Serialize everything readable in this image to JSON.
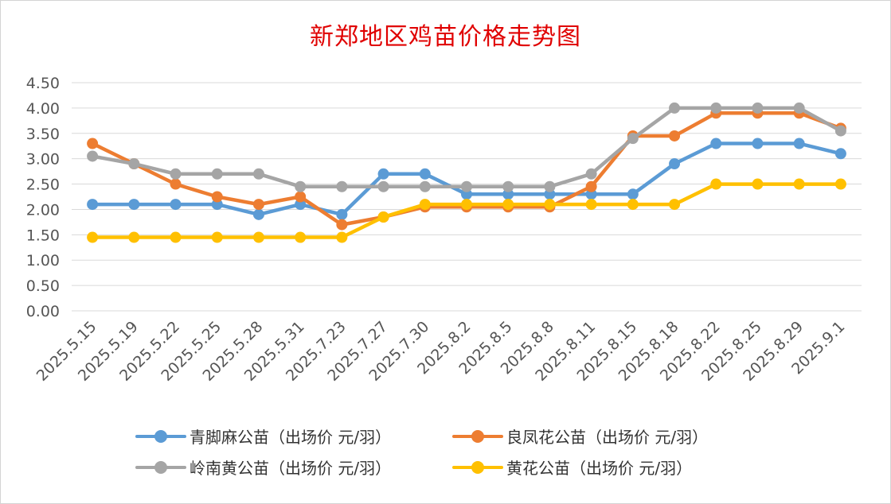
{
  "chart_data": {
    "type": "line",
    "title": "新郑地区鸡苗价格走势图",
    "categories": [
      "2025.5.15",
      "2025.5.19",
      "2025.5.22",
      "2025.5.25",
      "2025.5.28",
      "2025.5.31",
      "2025.7.23",
      "2025.7.27",
      "2025.7.30",
      "2025.8.2",
      "2025.8.5",
      "2025.8.8",
      "2025.8.11",
      "2025.8.15",
      "2025.8.18",
      "2025.8.22",
      "2025.8.25",
      "2025.8.29",
      "2025.9.1"
    ],
    "series": [
      {
        "name": "青脚麻公苗（出场价 元/羽）",
        "color": "#5b9bd5",
        "values": [
          2.1,
          2.1,
          2.1,
          2.1,
          1.9,
          2.1,
          1.9,
          2.7,
          2.7,
          2.3,
          2.3,
          2.3,
          2.3,
          2.3,
          2.9,
          3.3,
          3.3,
          3.3,
          3.1
        ]
      },
      {
        "name": "良凤花公苗（出场价 元/羽）",
        "color": "#ed7d31",
        "values": [
          3.3,
          2.9,
          2.5,
          2.25,
          2.1,
          2.25,
          1.7,
          1.85,
          2.05,
          2.05,
          2.05,
          2.05,
          2.45,
          3.45,
          3.45,
          3.9,
          3.9,
          3.9,
          3.6
        ]
      },
      {
        "name": "岭南黄公苗（出场价 元/羽）",
        "color": "#a5a5a5",
        "values": [
          3.05,
          2.9,
          2.7,
          2.7,
          2.7,
          2.45,
          2.45,
          2.45,
          2.45,
          2.45,
          2.45,
          2.45,
          2.7,
          3.4,
          4.0,
          4.0,
          4.0,
          4.0,
          3.55
        ]
      },
      {
        "name": "黄花公苗（出场价 元/羽）",
        "color": "#ffc000",
        "values": [
          1.45,
          1.45,
          1.45,
          1.45,
          1.45,
          1.45,
          1.45,
          1.85,
          2.1,
          2.1,
          2.1,
          2.1,
          2.1,
          2.1,
          2.1,
          2.5,
          2.5,
          2.5,
          2.5
        ]
      }
    ],
    "ylim": [
      0,
      4.5
    ],
    "yticks": [
      "0.00",
      "0.50",
      "1.00",
      "1.50",
      "2.00",
      "2.50",
      "3.00",
      "3.50",
      "4.00",
      "4.50"
    ],
    "grid": true,
    "legend_position": "bottom"
  }
}
